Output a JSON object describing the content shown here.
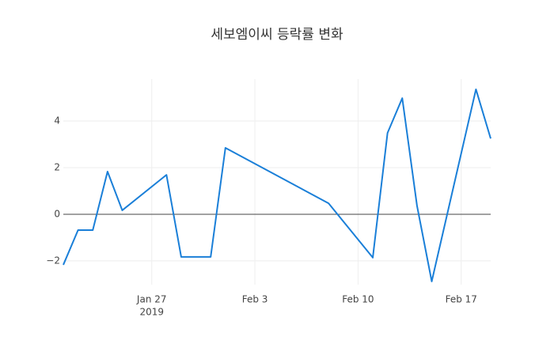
{
  "chart_data": {
    "type": "line",
    "title": "세보엠이씨 등락률 변화",
    "x": [
      "2019-01-21",
      "2019-01-22",
      "2019-01-23",
      "2019-01-24",
      "2019-01-25",
      "2019-01-28",
      "2019-01-29",
      "2019-01-31",
      "2019-02-01",
      "2019-02-08",
      "2019-02-11",
      "2019-02-12",
      "2019-02-13",
      "2019-02-14",
      "2019-02-15",
      "2019-02-18",
      "2019-02-19"
    ],
    "series": [
      {
        "color": "#1a7fd8",
        "values": [
          -2.17,
          -0.68,
          -0.68,
          1.83,
          0.17,
          1.69,
          -1.83,
          -1.83,
          2.85,
          0.47,
          -1.86,
          3.49,
          4.98,
          0.37,
          -2.88,
          5.36,
          3.25
        ]
      }
    ],
    "xlim": [
      "2019-01-21",
      "2019-02-19"
    ],
    "xticks": [
      {
        "value": "2019-01-27",
        "label": "Jan 27"
      },
      {
        "value": "2019-02-03",
        "label": "Feb 3"
      },
      {
        "value": "2019-02-10",
        "label": "Feb 10"
      },
      {
        "value": "2019-02-17",
        "label": "Feb 17"
      }
    ],
    "xtick_year": "2019",
    "ylim": [
      -3.02,
      5.8
    ],
    "yticks": [
      {
        "value": -2,
        "label": "−2"
      },
      0,
      2,
      4
    ],
    "grid": true,
    "zeroline": true
  }
}
